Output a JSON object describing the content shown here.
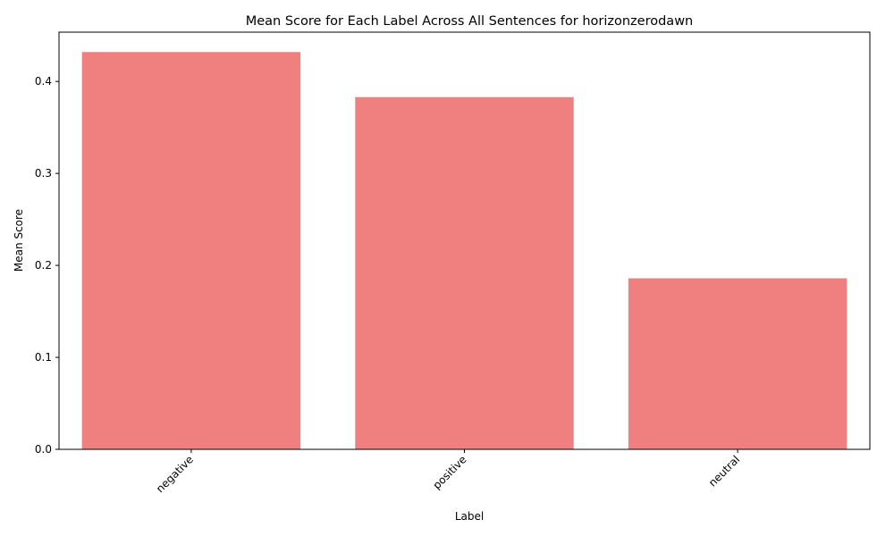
{
  "chart_data": {
    "type": "bar",
    "title": "Mean Score for Each Label Across All Sentences for horizonzerodawn",
    "xlabel": "Label",
    "ylabel": "Mean Score",
    "categories": [
      "negative",
      "positive",
      "neutral"
    ],
    "values": [
      0.432,
      0.383,
      0.186
    ],
    "ylim": [
      0,
      0.4536
    ],
    "yticks": [
      "0.0",
      "0.1",
      "0.2",
      "0.3",
      "0.4"
    ],
    "bar_color": "#f08080",
    "grid": false,
    "legend": false,
    "xtick_rotation": "45"
  }
}
